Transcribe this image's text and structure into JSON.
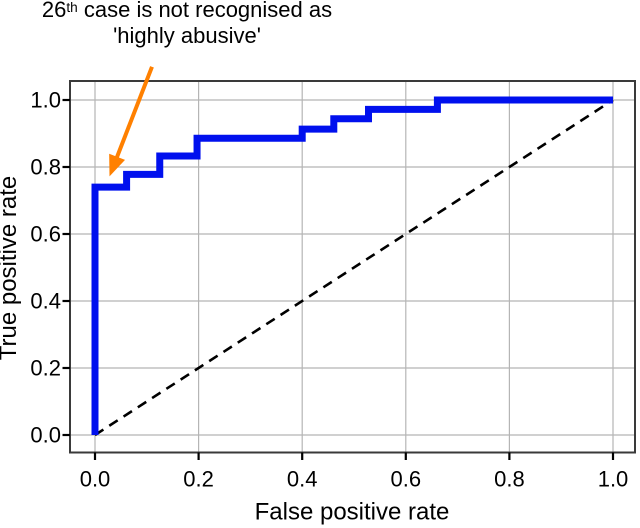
{
  "chart_data": {
    "type": "line",
    "variant": "roc-step-curve",
    "xlabel": "False positive rate",
    "ylabel": "True positive rate",
    "xlim": [
      -0.05,
      1.04
    ],
    "ylim": [
      -0.05,
      1.05
    ],
    "grid": true,
    "legend": "none",
    "x_ticks": [
      0.0,
      0.2,
      0.4,
      0.6,
      0.8,
      1.0
    ],
    "x_tick_labels": [
      "0.0",
      "0.2",
      "0.4",
      "0.6",
      "0.8",
      "1.0"
    ],
    "y_ticks": [
      0.0,
      0.2,
      0.4,
      0.6,
      0.8,
      1.0
    ],
    "y_tick_labels": [
      "0.0",
      "0.2",
      "0.4",
      "0.6",
      "0.8",
      "1.0"
    ],
    "series": [
      {
        "name": "ROC curve",
        "style": "solid-step",
        "color": "#0010ee",
        "linewidth": 7,
        "points": [
          [
            0.0,
            0.0
          ],
          [
            0.0,
            0.74
          ],
          [
            0.061,
            0.74
          ],
          [
            0.061,
            0.778
          ],
          [
            0.125,
            0.778
          ],
          [
            0.125,
            0.833
          ],
          [
            0.197,
            0.833
          ],
          [
            0.197,
            0.886
          ],
          [
            0.4,
            0.886
          ],
          [
            0.4,
            0.913
          ],
          [
            0.461,
            0.913
          ],
          [
            0.461,
            0.944
          ],
          [
            0.528,
            0.944
          ],
          [
            0.528,
            0.972
          ],
          [
            0.661,
            0.972
          ],
          [
            0.661,
            1.0
          ],
          [
            1.0,
            1.0
          ]
        ]
      },
      {
        "name": "Chance diagonal",
        "style": "dashed",
        "color": "#000000",
        "linewidth": 2.6,
        "points": [
          [
            0.0,
            0.0
          ],
          [
            1.0,
            1.0
          ]
        ]
      }
    ],
    "annotation": {
      "text": "26th case is not recognised as 'highly abusive'",
      "line1_base": "26",
      "line1_sup": "th",
      "line1_rest": "case is not recognised as",
      "line2": "'highly abusive'",
      "arrow": {
        "color": "#ff8000",
        "tip_xy": [
          0.028,
          0.772
        ],
        "tail_xy": [
          0.11,
          1.099
        ]
      }
    },
    "colors": {
      "background": "#ffffff",
      "grid": "#b5b5b5",
      "frame": "#3a3a3a",
      "text": "#000000"
    }
  }
}
